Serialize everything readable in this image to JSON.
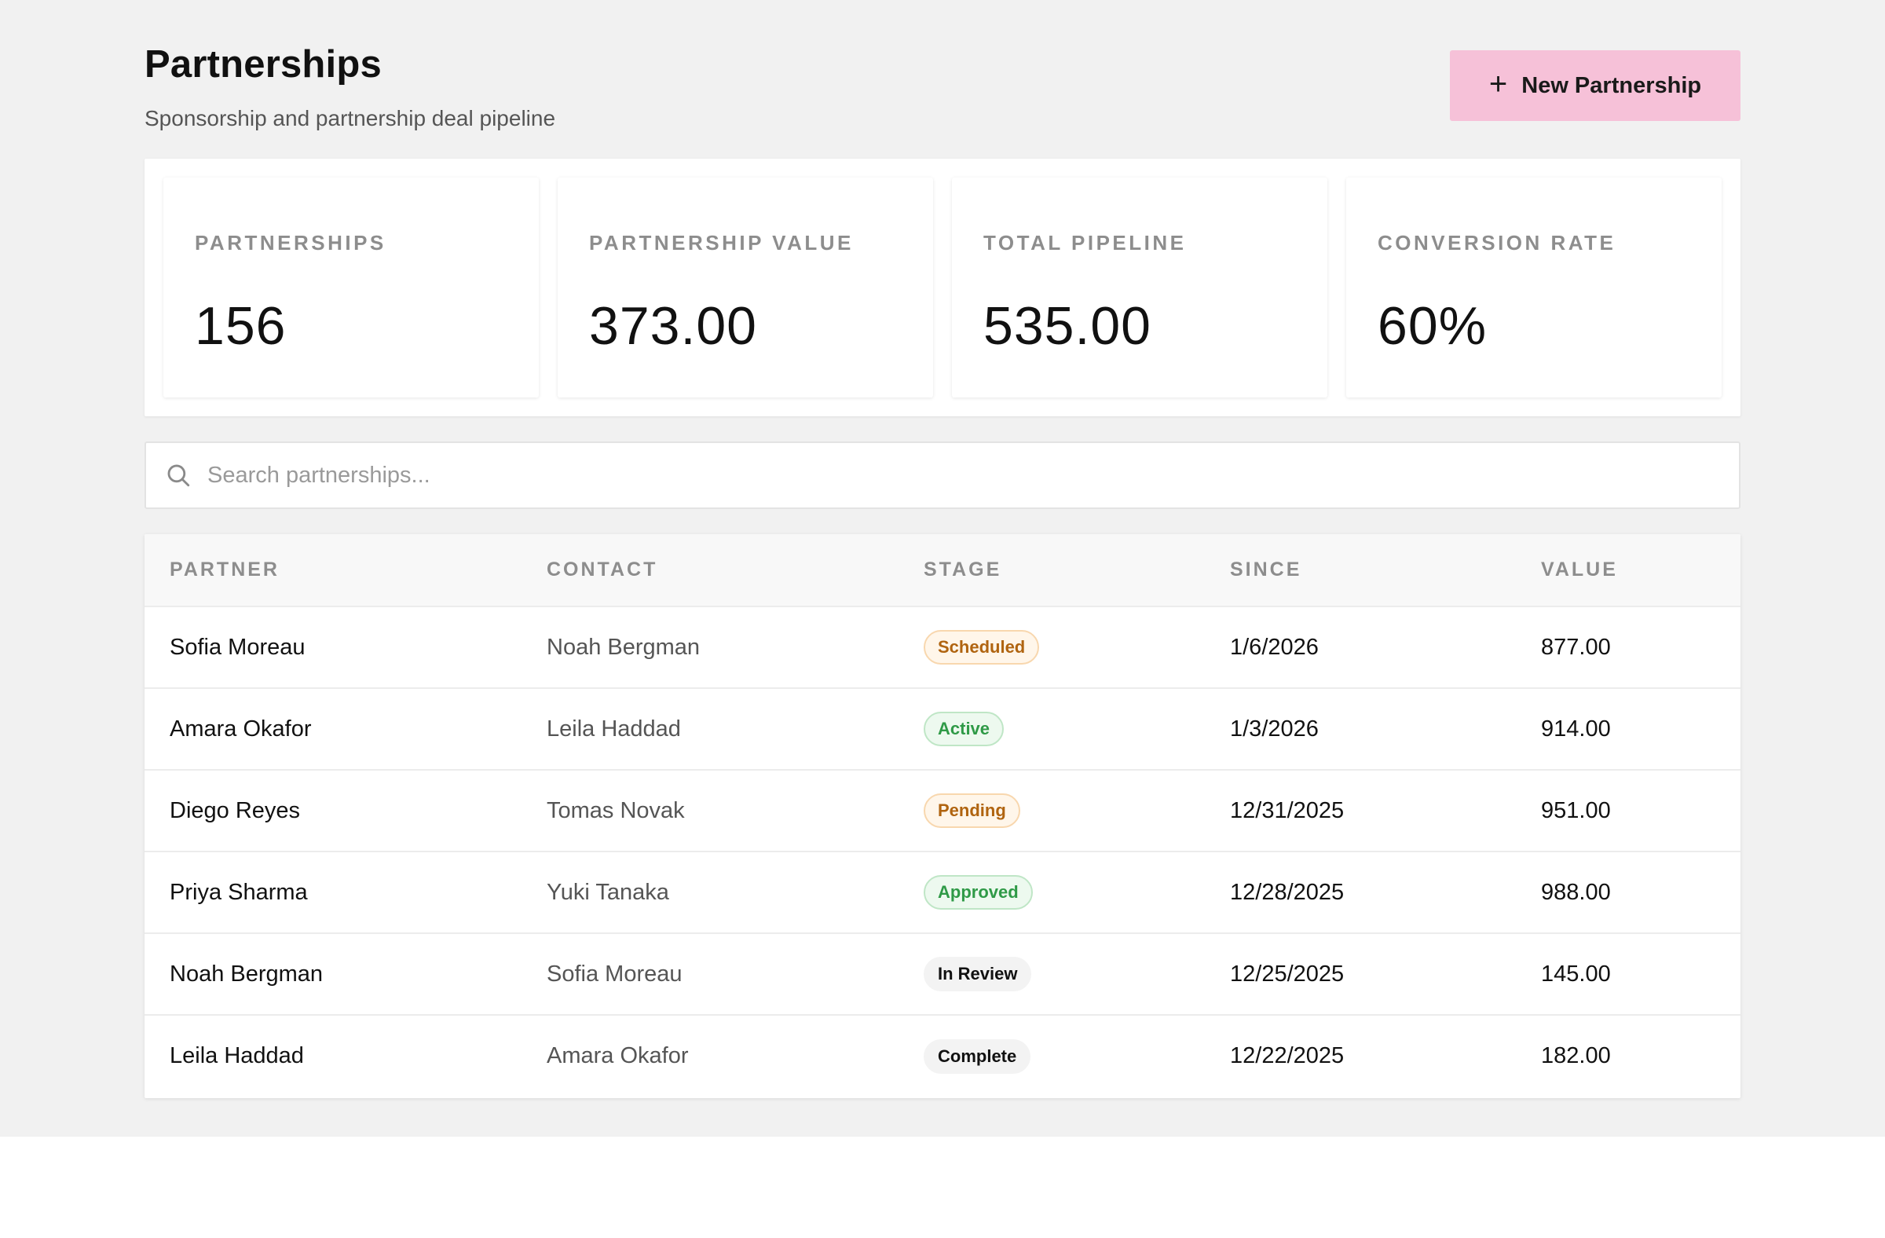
{
  "header": {
    "title": "Partnerships",
    "subtitle": "Sponsorship and partnership deal pipeline",
    "new_button_label": "New Partnership"
  },
  "stats": [
    {
      "label": "PARTNERSHIPS",
      "value": "156"
    },
    {
      "label": "PARTNERSHIP VALUE",
      "value": "373.00"
    },
    {
      "label": "TOTAL PIPELINE",
      "value": "535.00"
    },
    {
      "label": "CONVERSION RATE",
      "value": "60%"
    }
  ],
  "search": {
    "placeholder": "Search partnerships..."
  },
  "table": {
    "columns": [
      "PARTNER",
      "CONTACT",
      "STAGE",
      "SINCE",
      "VALUE"
    ],
    "rows": [
      {
        "partner": "Sofia Moreau",
        "contact": "Noah Bergman",
        "stage": "Scheduled",
        "since": "1/6/2026",
        "value": "877.00"
      },
      {
        "partner": "Amara Okafor",
        "contact": "Leila Haddad",
        "stage": "Active",
        "since": "1/3/2026",
        "value": "914.00"
      },
      {
        "partner": "Diego Reyes",
        "contact": "Tomas Novak",
        "stage": "Pending",
        "since": "12/31/2025",
        "value": "951.00"
      },
      {
        "partner": "Priya Sharma",
        "contact": "Yuki Tanaka",
        "stage": "Approved",
        "since": "12/28/2025",
        "value": "988.00"
      },
      {
        "partner": "Noah Bergman",
        "contact": "Sofia Moreau",
        "stage": "In Review",
        "since": "12/25/2025",
        "value": "145.00"
      },
      {
        "partner": "Leila Haddad",
        "contact": "Amara Okafor",
        "stage": "Complete",
        "since": "12/22/2025",
        "value": "182.00"
      }
    ]
  },
  "colors": {
    "accent_button": "#f6c1d8",
    "page_background": "#f1f1f1",
    "badge_warning_text": "#b06410",
    "badge_success_text": "#2f9a47"
  },
  "icons": {
    "button_icon": "plus-icon",
    "search_icon": "search-icon"
  }
}
